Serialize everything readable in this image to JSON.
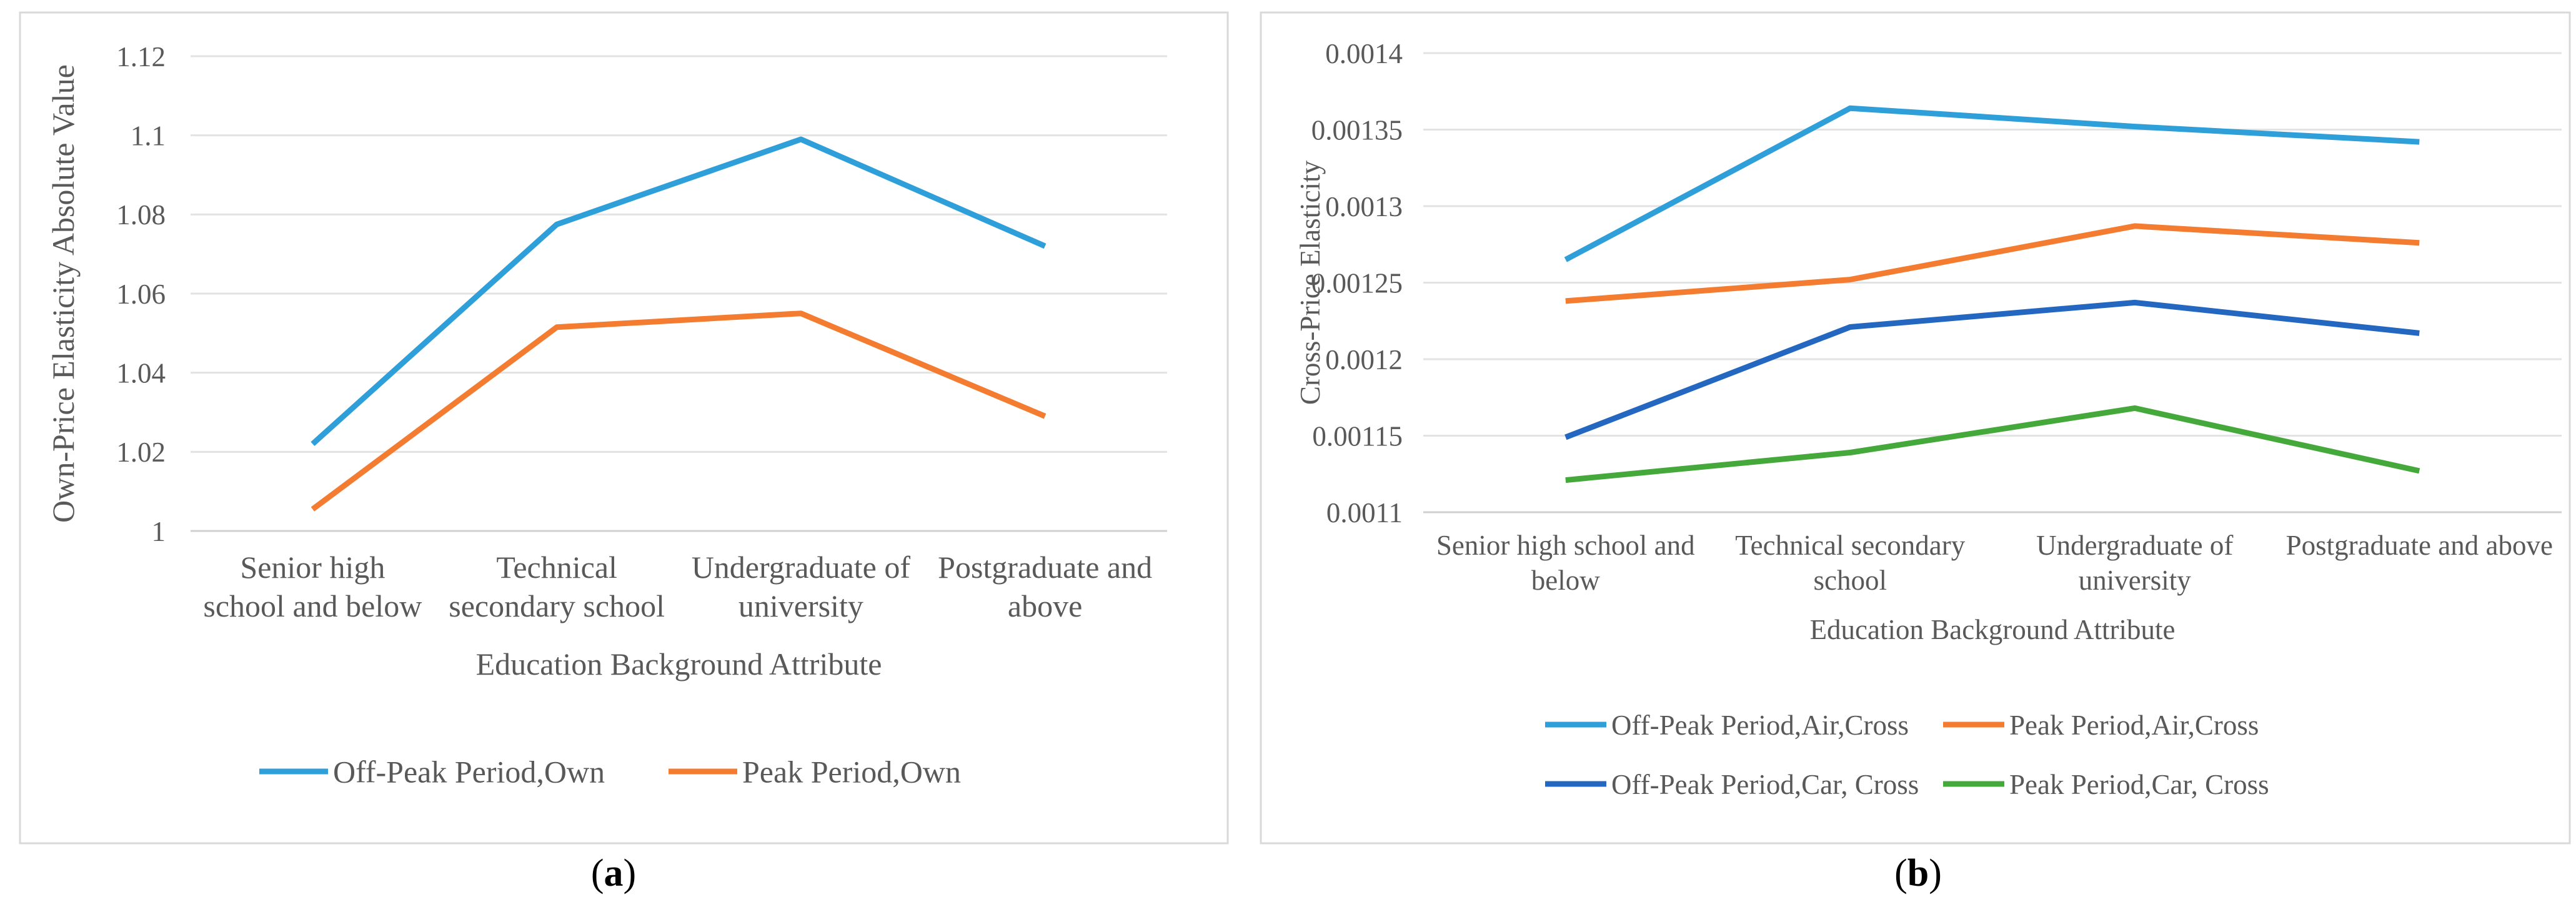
{
  "chart_data": [
    {
      "type": "line",
      "panel_label": "a",
      "title": "",
      "xlabel": "Education Background Attribute",
      "ylabel": "Own-Price Elasticity Absolute Value",
      "categories": [
        [
          "Senior high",
          "school and below"
        ],
        [
          "Technical",
          "secondary school"
        ],
        [
          "Undergraduate of",
          "university"
        ],
        [
          "Postgraduate and",
          "above"
        ]
      ],
      "ylim": [
        1,
        1.12
      ],
      "yticks": [
        1,
        1.02,
        1.04,
        1.06,
        1.08,
        1.1,
        1.12
      ],
      "ytick_labels": [
        "1",
        "1.02",
        "1.04",
        "1.06",
        "1.08",
        "1.1",
        "1.12"
      ],
      "grid": true,
      "legend_position": "bottom",
      "series": [
        {
          "name": "Off-Peak Period,Own",
          "color": "#2E9FD9",
          "values": [
            1.022,
            1.0775,
            1.099,
            1.072
          ]
        },
        {
          "name": "Peak Period,Own",
          "color": "#F47C30",
          "values": [
            1.0055,
            1.0515,
            1.055,
            1.029
          ]
        }
      ]
    },
    {
      "type": "line",
      "panel_label": "b",
      "title": "",
      "xlabel": "Education Background Attribute",
      "ylabel": "Cross-Price Elasticity",
      "categories": [
        [
          "Senior high school and",
          "below"
        ],
        [
          "Technical secondary",
          "school"
        ],
        [
          "Undergraduate of",
          "university"
        ],
        [
          "Postgraduate and above"
        ]
      ],
      "ylim": [
        0.0011,
        0.0014
      ],
      "yticks": [
        0.0011,
        0.00115,
        0.0012,
        0.00125,
        0.0013,
        0.00135,
        0.0014
      ],
      "ytick_labels": [
        "0.0011",
        "0.00115",
        "0.0012",
        "0.00125",
        "0.0013",
        "0.00135",
        "0.0014"
      ],
      "grid": true,
      "legend_position": "bottom",
      "series": [
        {
          "name": "Off-Peak Period,Air,Cross",
          "color": "#2E9FD9",
          "values": [
            0.001265,
            0.001364,
            0.001352,
            0.001342
          ]
        },
        {
          "name": "Peak Period,Air,Cross",
          "color": "#F47C30",
          "values": [
            0.001238,
            0.001252,
            0.001287,
            0.001276
          ]
        },
        {
          "name": "Off-Peak Period,Car, Cross",
          "color": "#2367C0",
          "values": [
            0.001149,
            0.001221,
            0.001237,
            0.001217
          ]
        },
        {
          "name": "Peak Period,Car, Cross",
          "color": "#45A83B",
          "values": [
            0.001121,
            0.001139,
            0.001168,
            0.001127
          ]
        }
      ]
    }
  ]
}
